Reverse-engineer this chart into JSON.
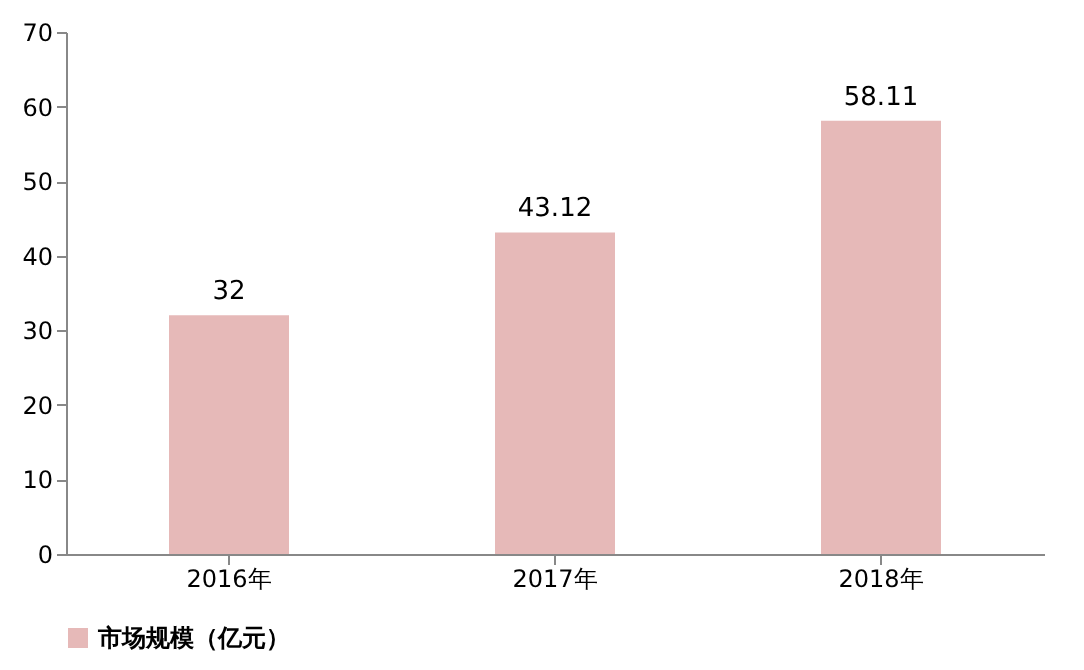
{
  "chart_data": {
    "type": "bar",
    "categories": [
      "2016年",
      "2017年",
      "2018年"
    ],
    "series": [
      {
        "name": "市场规模（亿元）",
        "color": "#e6b9b8",
        "values": [
          32,
          43.12,
          58.11
        ]
      }
    ],
    "ylim": [
      0,
      70
    ],
    "yticks": [
      0,
      10,
      20,
      30,
      40,
      50,
      60,
      70
    ],
    "grid": false,
    "legend": "bottom",
    "data_labels": true
  }
}
